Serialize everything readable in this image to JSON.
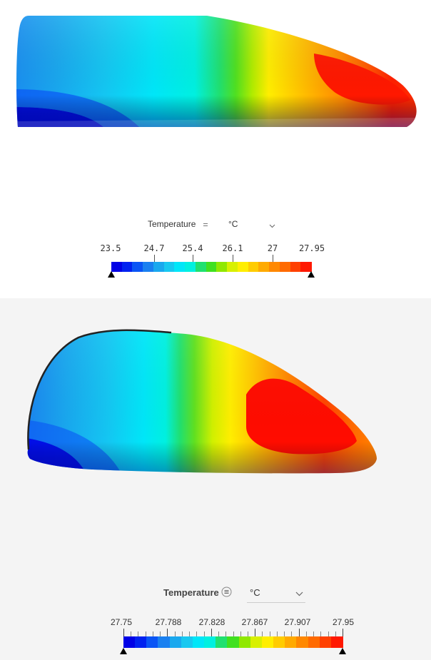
{
  "top_view": {
    "legend": {
      "title": "Temperature",
      "unit": "°C",
      "ticks": [
        "23.5",
        "24.7",
        "25.4",
        "26.1",
        "27",
        "27.95"
      ],
      "menu_icon": "menu-lines-icon",
      "dropdown_icon": "chevron-down-icon"
    }
  },
  "bottom_view": {
    "legend": {
      "title": "Temperature",
      "unit": "°C",
      "ticks": [
        "27.75",
        "27.788",
        "27.828",
        "27.867",
        "27.907",
        "27.95"
      ],
      "menu_icon": "menu-circle-icon",
      "dropdown_icon": "chevron-down-icon"
    }
  },
  "colormap": [
    "#0000e6",
    "#0022f0",
    "#0a55f5",
    "#1a80f0",
    "#1aa8ee",
    "#18c8f0",
    "#00e6f8",
    "#00f0e0",
    "#20e070",
    "#40e020",
    "#90e800",
    "#d8f000",
    "#ffee00",
    "#ffcc00",
    "#ffaa00",
    "#ff8800",
    "#ff6a00",
    "#ff4000",
    "#ff1800"
  ]
}
